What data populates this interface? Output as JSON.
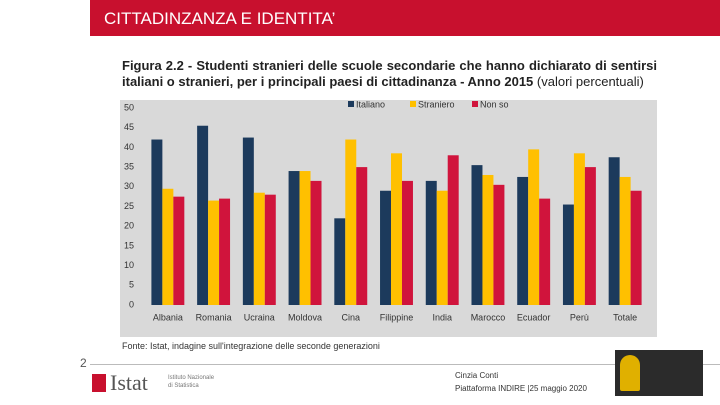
{
  "slide": {
    "title": "CITTADINZANZA E IDENTITA’",
    "page_number": "2",
    "footer": [
      "Cinzia Conti",
      "Piattaforma INDIRE |25 maggio 2020"
    ],
    "logo": "Istat",
    "logo_subtitle": "Istituto Nazionale di Statistica"
  },
  "chart_data": {
    "type": "bar",
    "title": "Figura 2.2 - Studenti stranieri delle scuole secondarie che hanno dichiarato di sentirsi italiani o stranieri, per i principali paesi di cittadinanza - Anno 2015",
    "subtitle": "(valori percentuali)",
    "source": "Fonte: Istat, indagine sull'integrazione delle seconde generazioni",
    "categories": [
      "Albania",
      "Romania",
      "Ucraina",
      "Moldova",
      "Cina",
      "Filippine",
      "India",
      "Marocco",
      "Ecuador",
      "Perù",
      "Totale"
    ],
    "series": [
      {
        "name": "Italiano",
        "color": "#1c3a5c",
        "values": [
          42,
          45.5,
          42.5,
          34,
          22,
          29,
          31.5,
          35.5,
          32.5,
          25.5,
          37.5
        ]
      },
      {
        "name": "Straniero",
        "color": "#ffc000",
        "values": [
          29.5,
          26.5,
          28.5,
          34,
          42,
          38.5,
          29,
          33,
          39.5,
          38.5,
          32.5
        ]
      },
      {
        "name": "Non so",
        "color": "#d0143c",
        "values": [
          27.5,
          27,
          28,
          31.5,
          35,
          31.5,
          38,
          30.5,
          27,
          35,
          29
        ]
      }
    ],
    "ylim": [
      0,
      50
    ],
    "yticks": [
      0,
      5,
      10,
      15,
      20,
      25,
      30,
      35,
      40,
      45,
      50
    ],
    "grid": false,
    "legend": "top"
  }
}
